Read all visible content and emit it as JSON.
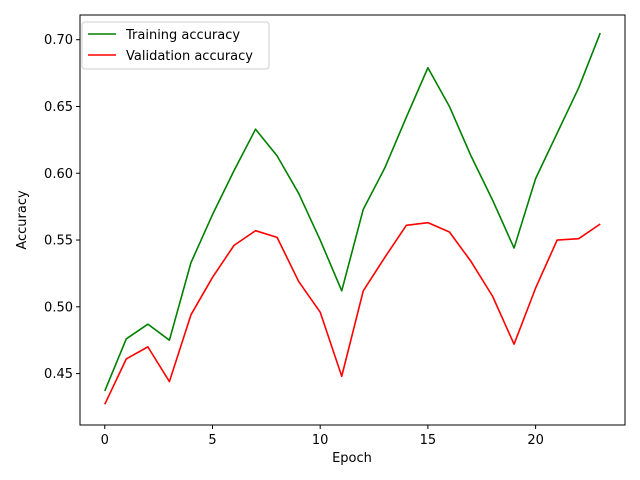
{
  "chart_data": {
    "type": "line",
    "xlabel": "Epoch",
    "ylabel": "Accuracy",
    "xlim": [
      -1.15,
      24.15
    ],
    "ylim": [
      0.4115,
      0.7185
    ],
    "xticks": [
      0,
      5,
      10,
      15,
      20
    ],
    "yticks": [
      0.45,
      0.5,
      0.55,
      0.6,
      0.65,
      0.7
    ],
    "ytick_labels": [
      "0.45",
      "0.50",
      "0.55",
      "0.60",
      "0.65",
      "0.70"
    ],
    "grid": false,
    "legend_position": "top-left",
    "x": [
      0,
      1,
      2,
      3,
      4,
      5,
      6,
      7,
      8,
      9,
      10,
      11,
      12,
      13,
      14,
      15,
      16,
      17,
      18,
      19,
      20,
      21,
      22,
      23
    ],
    "series": [
      {
        "name": "Training accuracy",
        "color": "#008000",
        "values": [
          0.437,
          0.476,
          0.487,
          0.475,
          0.533,
          0.569,
          0.602,
          0.633,
          0.613,
          0.585,
          0.55,
          0.512,
          0.573,
          0.604,
          0.642,
          0.679,
          0.65,
          0.613,
          0.58,
          0.544,
          0.596,
          0.63,
          0.664,
          0.705
        ]
      },
      {
        "name": "Validation accuracy",
        "color": "#ff0000",
        "values": [
          0.427,
          0.461,
          0.47,
          0.444,
          0.494,
          0.522,
          0.546,
          0.557,
          0.552,
          0.519,
          0.496,
          0.448,
          0.512,
          0.537,
          0.561,
          0.563,
          0.556,
          0.534,
          0.508,
          0.472,
          0.514,
          0.55,
          0.551,
          0.562
        ]
      }
    ]
  }
}
